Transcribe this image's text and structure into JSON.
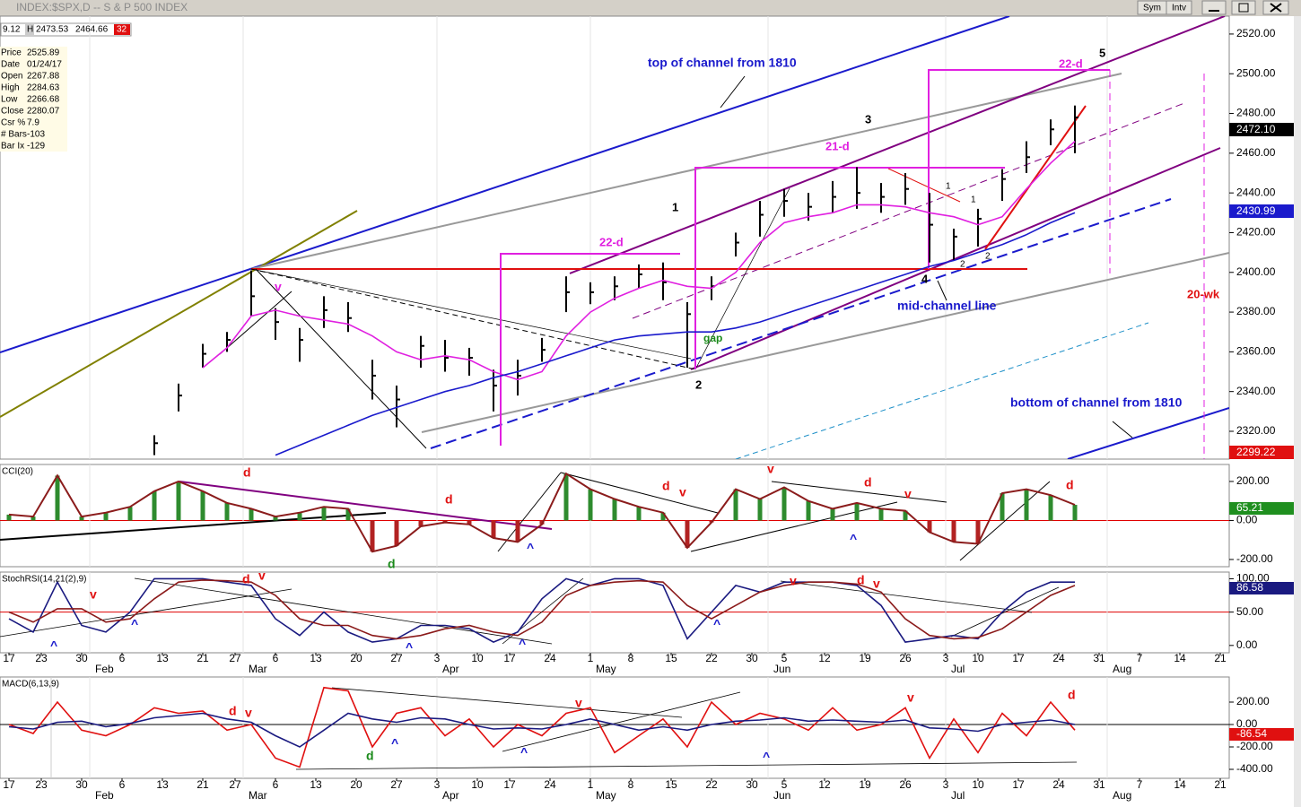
{
  "window": {
    "title": "INDEX:$SPX,D -- S & P 500 INDEX",
    "buttons": [
      "Sym",
      "Intv"
    ],
    "quote": [
      "9.12",
      "H",
      "2473.53",
      "2464.66",
      "32"
    ],
    "data_window": [
      [
        "Price",
        "2525.89"
      ],
      [
        "Date",
        "01/24/17"
      ],
      [
        "Open",
        "2267.88"
      ],
      [
        "High",
        "2284.63"
      ],
      [
        "Low",
        "2266.68"
      ],
      [
        "Close",
        "2280.07"
      ],
      [
        "Csr %",
        "7.9"
      ],
      [
        "# Bars",
        "-103"
      ],
      [
        "Bar Ix",
        "-129"
      ]
    ]
  },
  "chart_data": [
    {
      "type": "ohlc",
      "color": "#000000",
      "x": [
        18,
        21,
        24,
        27,
        30,
        33,
        36,
        39,
        42,
        45,
        48,
        51,
        54,
        57,
        60,
        63,
        66,
        69,
        72,
        75,
        78,
        81,
        84,
        87,
        90,
        93,
        96,
        99,
        102,
        105,
        108,
        111,
        114,
        117,
        120,
        123,
        126,
        129,
        132
      ],
      "high": [
        2318,
        2344,
        2364,
        2370,
        2401,
        2382,
        2372,
        2388,
        2385,
        2356,
        2343,
        2368,
        2366,
        2362,
        2351,
        2356,
        2367,
        2398,
        2395,
        2398,
        2404,
        2405,
        2385,
        2398,
        2420,
        2436,
        2442,
        2440,
        2446,
        2453,
        2445,
        2450,
        2440,
        2422,
        2432,
        2452,
        2466,
        2477,
        2484
      ],
      "low": [
        2308,
        2330,
        2352,
        2360,
        2378,
        2366,
        2355,
        2372,
        2370,
        2336,
        2322,
        2352,
        2350,
        2348,
        2330,
        2338,
        2355,
        2380,
        2384,
        2386,
        2392,
        2386,
        2352,
        2386,
        2408,
        2418,
        2428,
        2426,
        2430,
        2432,
        2430,
        2434,
        2405,
        2406,
        2413,
        2436,
        2450,
        2464,
        2460
      ],
      "close": [
        2314,
        2338,
        2359,
        2366,
        2388,
        2375,
        2366,
        2381,
        2377,
        2348,
        2336,
        2363,
        2357,
        2357,
        2343,
        2348,
        2361,
        2390,
        2390,
        2393,
        2399,
        2395,
        2379,
        2393,
        2415,
        2429,
        2436,
        2433,
        2438,
        2440,
        2438,
        2442,
        2424,
        2418,
        2427,
        2447,
        2458,
        2472,
        2478
      ],
      "series": [
        {
          "color": "#e020e0",
          "values": [
            null,
            null,
            2352,
            2362,
            2378,
            2381,
            2378,
            2376,
            2374,
            2368,
            2360,
            2356,
            2358,
            2356,
            2350,
            2346,
            2350,
            2368,
            2380,
            2387,
            2392,
            2396,
            2393,
            2392,
            2400,
            2415,
            2425,
            2428,
            2430,
            2434,
            2434,
            2433,
            2430,
            2428,
            2424,
            2428,
            2442,
            2455,
            2466
          ]
        },
        {
          "color": "#1a1acc",
          "values": [
            null,
            null,
            null,
            null,
            null,
            2308,
            2313,
            2318,
            2323,
            2328,
            2332,
            2336,
            2340,
            2343,
            2347,
            2350,
            2354,
            2358,
            2362,
            2366,
            2368,
            2369,
            2370,
            2370,
            2372,
            2375,
            2379,
            2383,
            2387,
            2391,
            2395,
            2399,
            2403,
            2406,
            2410,
            2414,
            2419,
            2425,
            2430
          ]
        }
      ],
      "xlim": [
        -1,
        151
      ],
      "ylim": [
        2306,
        2529
      ],
      "yticks": [
        {
          "value": 2320,
          "label": "2320.00"
        },
        {
          "value": 2340,
          "label": "2340.00"
        },
        {
          "value": 2360,
          "label": "2360.00"
        },
        {
          "value": 2380,
          "label": "2380.00"
        },
        {
          "value": 2400,
          "label": "2400.00"
        },
        {
          "value": 2420,
          "label": "2420.00"
        },
        {
          "value": 2440,
          "label": "2440.00"
        },
        {
          "value": 2460,
          "label": "2460.00"
        },
        {
          "value": 2480,
          "label": "2480.00"
        },
        {
          "value": 2500,
          "label": "2500.00"
        },
        {
          "value": 2520,
          "label": "2520.00"
        }
      ],
      "annotations": [
        "top of channel from 1810",
        "mid-channel line",
        "bottom of channel from 1810",
        "gap",
        "22-d",
        "21-d",
        "22-d",
        "20-wk",
        "v",
        "1",
        "2",
        "3",
        "4",
        "5",
        "1",
        "2",
        "1",
        "2"
      ],
      "last_labels": [
        "2472.10",
        "2430.99",
        "2299.22"
      ]
    },
    {
      "type": "bar",
      "title": "CCI(20)",
      "x": [
        0,
        3,
        6,
        9,
        12,
        15,
        18,
        21,
        24,
        27,
        30,
        33,
        36,
        39,
        42,
        45,
        48,
        51,
        54,
        57,
        60,
        63,
        66,
        69,
        72,
        75,
        78,
        81,
        84,
        87,
        90,
        93,
        96,
        99,
        102,
        105,
        108,
        111,
        114,
        117,
        120,
        123,
        126,
        129,
        132
      ],
      "values": [
        30,
        20,
        230,
        20,
        40,
        70,
        150,
        200,
        150,
        90,
        60,
        20,
        40,
        70,
        60,
        -160,
        -130,
        -30,
        -10,
        -20,
        -90,
        -110,
        -20,
        240,
        160,
        110,
        70,
        40,
        -140,
        -10,
        160,
        110,
        170,
        100,
        60,
        90,
        60,
        50,
        -60,
        -110,
        -120,
        140,
        160,
        130,
        80
      ],
      "colors": {
        "positive": "#2e8b2e",
        "negative": "#b22222"
      },
      "line_color": "#8b1c1c",
      "xlim": [
        -1,
        151
      ],
      "ylim": [
        -237,
        287
      ],
      "yticks": [
        {
          "value": 200,
          "label": "200.00"
        },
        {
          "value": 0,
          "label": "0.00"
        },
        {
          "value": -200,
          "label": "-200.00"
        }
      ],
      "reference": {
        "value": 0,
        "color": "#e00000"
      },
      "annotations": [
        "d",
        "d",
        "d",
        "^",
        "d",
        "v",
        "v",
        "d",
        "v",
        "^",
        "d"
      ],
      "last_label": "65.21"
    },
    {
      "type": "line",
      "title": "StochRSI(14,21(2),9)",
      "x": [
        0,
        3,
        6,
        9,
        12,
        15,
        18,
        21,
        24,
        27,
        30,
        33,
        36,
        39,
        42,
        45,
        48,
        51,
        54,
        57,
        60,
        63,
        66,
        69,
        72,
        75,
        78,
        81,
        84,
        87,
        90,
        93,
        96,
        99,
        102,
        105,
        108,
        111,
        114,
        117,
        120,
        123,
        126,
        129,
        132
      ],
      "series": [
        {
          "color": "#1a1a80",
          "values": [
            40,
            20,
            95,
            30,
            20,
            50,
            100,
            100,
            100,
            95,
            90,
            40,
            15,
            50,
            20,
            5,
            10,
            30,
            30,
            25,
            5,
            20,
            70,
            100,
            90,
            100,
            100,
            90,
            10,
            50,
            90,
            80,
            95,
            95,
            95,
            90,
            60,
            5,
            10,
            15,
            10,
            50,
            80,
            95,
            95
          ]
        },
        {
          "color": "#8b1a1a",
          "values": [
            50,
            35,
            55,
            55,
            35,
            40,
            70,
            95,
            98,
            97,
            95,
            75,
            40,
            30,
            30,
            15,
            10,
            15,
            25,
            30,
            20,
            15,
            35,
            75,
            90,
            95,
            97,
            95,
            60,
            40,
            60,
            80,
            90,
            95,
            95,
            92,
            80,
            40,
            15,
            10,
            12,
            25,
            50,
            75,
            90
          ]
        }
      ],
      "xlim": [
        -1,
        151
      ],
      "ylim": [
        -11,
        110
      ],
      "yticks": [
        {
          "value": 0,
          "label": "0.00"
        },
        {
          "value": 50,
          "label": "50.00"
        },
        {
          "value": 100,
          "label": "100.00"
        }
      ],
      "reference": {
        "value": 50,
        "color": "#e00000"
      },
      "xticks": [
        {
          "value": 0,
          "label": "17"
        },
        {
          "value": 4,
          "label": "23"
        },
        {
          "value": 9,
          "label": "30"
        },
        {
          "value": 14,
          "label": "6"
        },
        {
          "value": 19,
          "label": "13"
        },
        {
          "value": 24,
          "label": "21"
        },
        {
          "value": 28,
          "label": "27"
        },
        {
          "value": 33,
          "label": "6"
        },
        {
          "value": 38,
          "label": "13"
        },
        {
          "value": 43,
          "label": "20"
        },
        {
          "value": 48,
          "label": "27"
        },
        {
          "value": 53,
          "label": "3"
        },
        {
          "value": 58,
          "label": "10"
        },
        {
          "value": 62,
          "label": "17"
        },
        {
          "value": 67,
          "label": "24"
        },
        {
          "value": 72,
          "label": "1"
        },
        {
          "value": 77,
          "label": "8"
        },
        {
          "value": 82,
          "label": "15"
        },
        {
          "value": 87,
          "label": "22"
        },
        {
          "value": 92,
          "label": "30"
        },
        {
          "value": 96,
          "label": "5"
        },
        {
          "value": 101,
          "label": "12"
        },
        {
          "value": 106,
          "label": "19"
        },
        {
          "value": 111,
          "label": "26"
        },
        {
          "value": 116,
          "label": "3"
        },
        {
          "value": 120,
          "label": "10"
        },
        {
          "value": 125,
          "label": "17"
        },
        {
          "value": 130,
          "label": "24"
        },
        {
          "value": 135,
          "label": "31"
        },
        {
          "value": 140,
          "label": "7"
        },
        {
          "value": 145,
          "label": "14"
        },
        {
          "value": 150,
          "label": "21"
        }
      ],
      "month_ticks": [
        {
          "value": 10,
          "label": "Feb"
        },
        {
          "value": 29,
          "label": "Mar"
        },
        {
          "value": 53,
          "label": "Apr"
        },
        {
          "value": 72,
          "label": "May"
        },
        {
          "value": 94,
          "label": "Jun"
        },
        {
          "value": 116,
          "label": "Jul"
        },
        {
          "value": 136,
          "label": "Aug"
        }
      ],
      "annotations": [
        "v",
        "^",
        "^",
        "d",
        "v",
        "^",
        "^",
        "^",
        "v",
        "d",
        "v"
      ],
      "last_label": "86.58"
    },
    {
      "type": "line",
      "title": "MACD(6,13,9)",
      "x": [
        0,
        3,
        6,
        9,
        12,
        15,
        18,
        21,
        24,
        27,
        30,
        33,
        36,
        39,
        42,
        45,
        48,
        51,
        54,
        57,
        60,
        63,
        66,
        69,
        72,
        75,
        78,
        81,
        84,
        87,
        90,
        93,
        96,
        99,
        102,
        105,
        108,
        111,
        114,
        117,
        120,
        123,
        126,
        129,
        132
      ],
      "series": [
        {
          "color": "#e01010",
          "values": [
            0,
            -80,
            200,
            -50,
            -100,
            0,
            150,
            100,
            120,
            -50,
            0,
            -300,
            -380,
            330,
            300,
            -200,
            100,
            150,
            -100,
            50,
            -200,
            0,
            -100,
            100,
            150,
            -250,
            -100,
            50,
            -200,
            200,
            0,
            100,
            50,
            -50,
            150,
            -50,
            0,
            150,
            -300,
            50,
            -250,
            100,
            -100,
            200,
            -50
          ]
        },
        {
          "color": "#1a1a80",
          "values": [
            -20,
            -40,
            20,
            30,
            -20,
            10,
            60,
            80,
            100,
            50,
            20,
            -100,
            -200,
            -50,
            100,
            50,
            20,
            60,
            50,
            0,
            -40,
            -30,
            -40,
            0,
            50,
            0,
            -50,
            -20,
            -50,
            0,
            30,
            40,
            60,
            30,
            40,
            30,
            20,
            40,
            -30,
            -40,
            -60,
            0,
            20,
            40,
            0
          ]
        }
      ],
      "xlim": [
        -1,
        151
      ],
      "ylim": [
        -480,
        424
      ],
      "yticks": [
        {
          "value": 200,
          "label": "200.00"
        },
        {
          "value": 0,
          "label": "0.00"
        },
        {
          "value": -200,
          "label": "-200.00"
        },
        {
          "value": -400,
          "label": "-400.00"
        }
      ],
      "reference": {
        "value": 0,
        "color": "#000000"
      },
      "xticks": [
        {
          "value": 0,
          "label": "17"
        },
        {
          "value": 4,
          "label": "23"
        },
        {
          "value": 9,
          "label": "30"
        },
        {
          "value": 14,
          "label": "6"
        },
        {
          "value": 19,
          "label": "13"
        },
        {
          "value": 24,
          "label": "21"
        },
        {
          "value": 28,
          "label": "27"
        },
        {
          "value": 33,
          "label": "6"
        },
        {
          "value": 38,
          "label": "13"
        },
        {
          "value": 43,
          "label": "20"
        },
        {
          "value": 48,
          "label": "27"
        },
        {
          "value": 53,
          "label": "3"
        },
        {
          "value": 58,
          "label": "10"
        },
        {
          "value": 62,
          "label": "17"
        },
        {
          "value": 67,
          "label": "24"
        },
        {
          "value": 72,
          "label": "1"
        },
        {
          "value": 77,
          "label": "8"
        },
        {
          "value": 82,
          "label": "15"
        },
        {
          "value": 87,
          "label": "22"
        },
        {
          "value": 92,
          "label": "30"
        },
        {
          "value": 96,
          "label": "5"
        },
        {
          "value": 101,
          "label": "12"
        },
        {
          "value": 106,
          "label": "19"
        },
        {
          "value": 111,
          "label": "26"
        },
        {
          "value": 116,
          "label": "3"
        },
        {
          "value": 120,
          "label": "10"
        },
        {
          "value": 125,
          "label": "17"
        },
        {
          "value": 130,
          "label": "24"
        },
        {
          "value": 135,
          "label": "31"
        },
        {
          "value": 140,
          "label": "7"
        },
        {
          "value": 145,
          "label": "14"
        },
        {
          "value": 150,
          "label": "21"
        }
      ],
      "month_ticks": [
        {
          "value": 10,
          "label": "Feb"
        },
        {
          "value": 29,
          "label": "Mar"
        },
        {
          "value": 53,
          "label": "Apr"
        },
        {
          "value": 72,
          "label": "May"
        },
        {
          "value": 94,
          "label": "Jun"
        },
        {
          "value": 116,
          "label": "Jul"
        },
        {
          "value": 136,
          "label": "Aug"
        }
      ],
      "annotations": [
        "d",
        "v",
        "^",
        "d",
        "^",
        "v",
        "^",
        "v",
        "d"
      ],
      "last_label": "-86.54"
    }
  ]
}
